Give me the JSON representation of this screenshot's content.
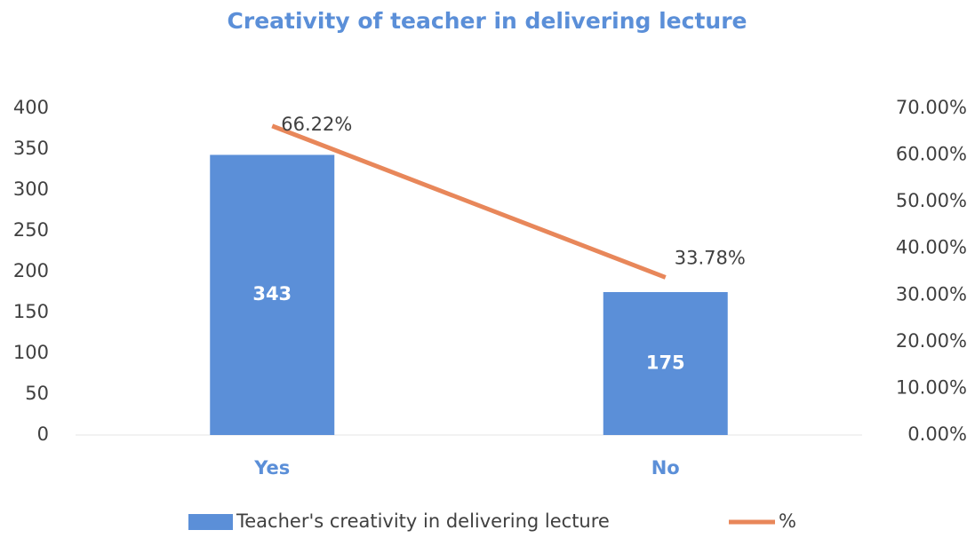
{
  "chart_data": {
    "type": "bar",
    "title": "Creativity of teacher in delivering lecture",
    "categories": [
      "Yes",
      "No"
    ],
    "series": [
      {
        "name": "Teacher's creativity in delivering lecture",
        "type": "bar",
        "color": "#5b8fd8",
        "values": [
          343,
          175
        ]
      },
      {
        "name": "%",
        "type": "line",
        "axis": "y2",
        "color": "#e8875a",
        "values": [
          66.22,
          33.78
        ],
        "value_labels": [
          "66.22%",
          "33.78%"
        ]
      }
    ],
    "ylim": [
      0,
      400
    ],
    "yticks": [
      0,
      50,
      100,
      150,
      200,
      250,
      300,
      350,
      400
    ],
    "y2lim": [
      0,
      70
    ],
    "y2ticks": [
      {
        "value": 0,
        "label": "0.00%"
      },
      {
        "value": 10,
        "label": "10.00%"
      },
      {
        "value": 20,
        "label": "20.00%"
      },
      {
        "value": 30,
        "label": "30.00%"
      },
      {
        "value": 40,
        "label": "40.00%"
      },
      {
        "value": 50,
        "label": "50.00%"
      },
      {
        "value": 60,
        "label": "60.00%"
      },
      {
        "value": 70,
        "label": "70.00%"
      }
    ],
    "legend": "bottom"
  }
}
